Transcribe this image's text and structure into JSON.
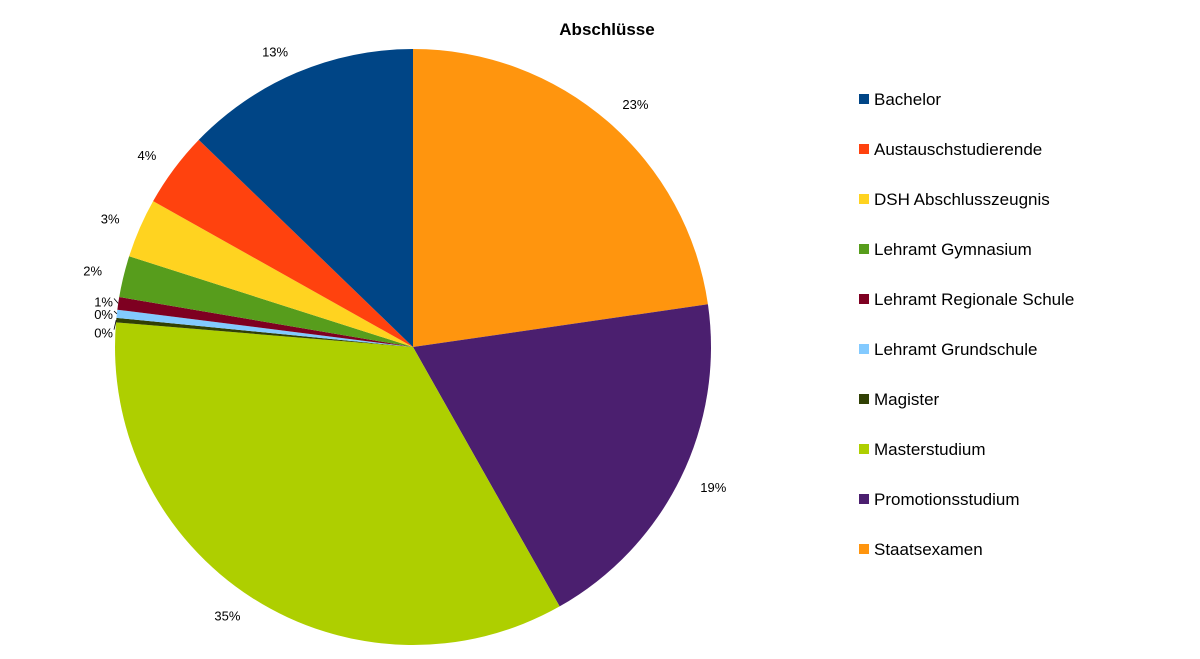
{
  "chart_data": {
    "type": "pie",
    "title": "Abschlüsse",
    "start_angle_deg": 0,
    "direction": "clockwise",
    "legend_position": "right",
    "slices": [
      {
        "name": "Staatsexamen",
        "value": 23.3,
        "label": "23%",
        "color": "#FF950E"
      },
      {
        "name": "Promotionsstudium",
        "value": 19.6,
        "label": "19%",
        "color": "#4B1F6F"
      },
      {
        "name": "Masterstudium",
        "value": 35.4,
        "label": "35%",
        "color": "#AECF00"
      },
      {
        "name": "Magister",
        "value": 0.25,
        "label": "0%",
        "color": "#314004"
      },
      {
        "name": "Lehramt Grundschule",
        "value": 0.45,
        "label": "0%",
        "color": "#83CAFF"
      },
      {
        "name": "Lehramt Regionale Schule",
        "value": 0.7,
        "label": "1%",
        "color": "#7E0021"
      },
      {
        "name": "Lehramt Gymnasium",
        "value": 2.3,
        "label": "2%",
        "color": "#579D1C"
      },
      {
        "name": "DSH Abschlusszeugnis",
        "value": 3.3,
        "label": "3%",
        "color": "#FFD320"
      },
      {
        "name": "Austauschstudierende",
        "value": 4.2,
        "label": "4%",
        "color": "#FF420E"
      },
      {
        "name": "Bachelor",
        "value": 13.1,
        "label": "13%",
        "color": "#004586"
      }
    ],
    "legend": [
      {
        "name": "Bachelor",
        "color": "#004586"
      },
      {
        "name": "Austauschstudierende",
        "color": "#FF420E"
      },
      {
        "name": "DSH Abschlusszeugnis",
        "color": "#FFD320"
      },
      {
        "name": "Lehramt Gymnasium",
        "color": "#579D1C"
      },
      {
        "name": "Lehramt Regionale Schule",
        "color": "#7E0021"
      },
      {
        "name": "Lehramt Grundschule",
        "color": "#83CAFF"
      },
      {
        "name": "Magister",
        "color": "#314004"
      },
      {
        "name": "Masterstudium",
        "color": "#AECF00"
      },
      {
        "name": "Promotionsstudium",
        "color": "#4B1F6F"
      },
      {
        "name": "Staatsexamen",
        "color": "#FF950E"
      }
    ]
  }
}
